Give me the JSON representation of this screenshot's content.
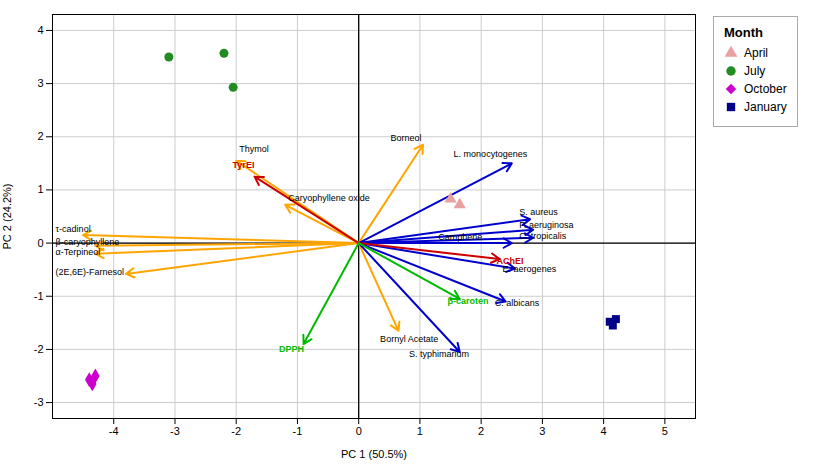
{
  "chart_data": {
    "type": "scatter",
    "xlabel": "PC 1 (50.5%)",
    "ylabel": "PC 2 (24.2%)",
    "xlim": [
      -5.0,
      5.5
    ],
    "ylim": [
      -3.3,
      4.3
    ],
    "xticks": [
      -4,
      -3,
      -2,
      -1,
      0,
      1,
      2,
      3,
      4,
      5
    ],
    "yticks": [
      -3,
      -2,
      -1,
      0,
      1,
      2,
      3,
      4
    ],
    "grid": true,
    "legend": "right",
    "legend_title": "Month",
    "series": [
      {
        "name": "April",
        "color": "#E8A0A0",
        "marker": "triangle",
        "x": [
          1.5,
          1.65
        ],
        "values": [
          0.83,
          0.72
        ]
      },
      {
        "name": "July",
        "color": "#228B22",
        "marker": "circle",
        "x": [
          -3.1,
          -2.2,
          -2.05
        ],
        "values": [
          3.5,
          3.57,
          2.93
        ]
      },
      {
        "name": "October",
        "color": "#CC00CC",
        "marker": "diamond",
        "x": [
          -4.3,
          -4.4,
          -4.35
        ],
        "values": [
          -2.5,
          -2.57,
          -2.65
        ]
      },
      {
        "name": "January",
        "color": "#00008B",
        "marker": "square",
        "x": [
          4.1,
          4.15,
          4.2
        ],
        "values": [
          -1.48,
          -1.55,
          -1.43
        ]
      }
    ],
    "arrows": [
      {
        "x": -2.0,
        "y": 1.55,
        "color": "#FFA500",
        "label": "Thymol",
        "label_x": -1.95,
        "label_y": 1.72
      },
      {
        "x": -1.2,
        "y": 0.72,
        "color": "#FFA500",
        "label": "Caryophyllene oxide",
        "label_x": -1.15,
        "label_y": 0.8
      },
      {
        "x": -4.5,
        "y": 0.15,
        "color": "#FFA500",
        "label": "τ-cadinol",
        "label_x": -4.95,
        "label_y": 0.2
      },
      {
        "x": -4.3,
        "y": -0.05,
        "color": "#FFA500",
        "label": "β-caryophyllene",
        "label_x": -4.95,
        "label_y": -0.03
      },
      {
        "x": -4.3,
        "y": -0.2,
        "color": "#FFA500",
        "label": "α-Terpineol",
        "label_x": -4.95,
        "label_y": -0.22
      },
      {
        "x": -3.8,
        "y": -0.58,
        "color": "#FFA500",
        "label": "(2E,6E)-Farnesol",
        "label_x": -4.95,
        "label_y": -0.6
      },
      {
        "x": 1.05,
        "y": 1.85,
        "color": "#FFA500",
        "label": "Borneol",
        "label_x": 0.52,
        "label_y": 1.92
      },
      {
        "x": 0.65,
        "y": -1.65,
        "color": "#FFA500",
        "label": "Bornyl Acetate",
        "label_x": 0.35,
        "label_y": -1.75,
        "label_anchor": "top"
      },
      {
        "x": 2.5,
        "y": 1.5,
        "color": "#0000CD",
        "label": "L. monocytogenes",
        "label_x": 1.55,
        "label_y": 1.62
      },
      {
        "x": 2.8,
        "y": 0.45,
        "color": "#0000CD",
        "label": "S. aureus",
        "label_x": 2.62,
        "label_y": 0.52
      },
      {
        "x": 2.85,
        "y": 0.25,
        "color": "#0000CD",
        "label": "P. aeruginosa",
        "label_x": 2.62,
        "label_y": 0.28
      },
      {
        "x": 2.85,
        "y": 0.1,
        "color": "#0000CD",
        "label": "C. tropicalis",
        "label_x": 2.62,
        "label_y": 0.08
      },
      {
        "x": 2.5,
        "y": 0.0,
        "color": "#0000CD",
        "label": "Camphene",
        "label_x": 1.3,
        "label_y": 0.06
      },
      {
        "x": 2.55,
        "y": -0.48,
        "color": "#0000CD",
        "label": "E. aerogenes",
        "label_x": 2.35,
        "label_y": -0.55
      },
      {
        "x": 2.4,
        "y": -1.1,
        "color": "#0000CD",
        "label": "C. albicans",
        "label_x": 2.22,
        "label_y": -1.18
      },
      {
        "x": 1.65,
        "y": -2.05,
        "color": "#0000CD",
        "label": "S. typhimarium",
        "label_x": 0.82,
        "label_y": -2.15
      },
      {
        "x": -1.7,
        "y": 1.25,
        "color": "#CC0000",
        "label": "TyrEI",
        "label_x": -2.06,
        "label_y": 1.42,
        "label_color": "#CC0000"
      },
      {
        "x": 2.3,
        "y": -0.3,
        "color": "#CC0000",
        "label": "AChEI",
        "label_x": 2.25,
        "label_y": -0.4,
        "label_color": "#CC0000"
      },
      {
        "x": -0.9,
        "y": -1.9,
        "color": "#00BB00",
        "label": "DPPH",
        "label_x": -1.3,
        "label_y": -2.05,
        "label_color": "#00BB00"
      },
      {
        "x": 1.65,
        "y": -1.05,
        "color": "#00BB00",
        "label": "β-caroten",
        "label_x": 1.45,
        "label_y": -1.14,
        "label_color": "#00BB00"
      }
    ]
  }
}
